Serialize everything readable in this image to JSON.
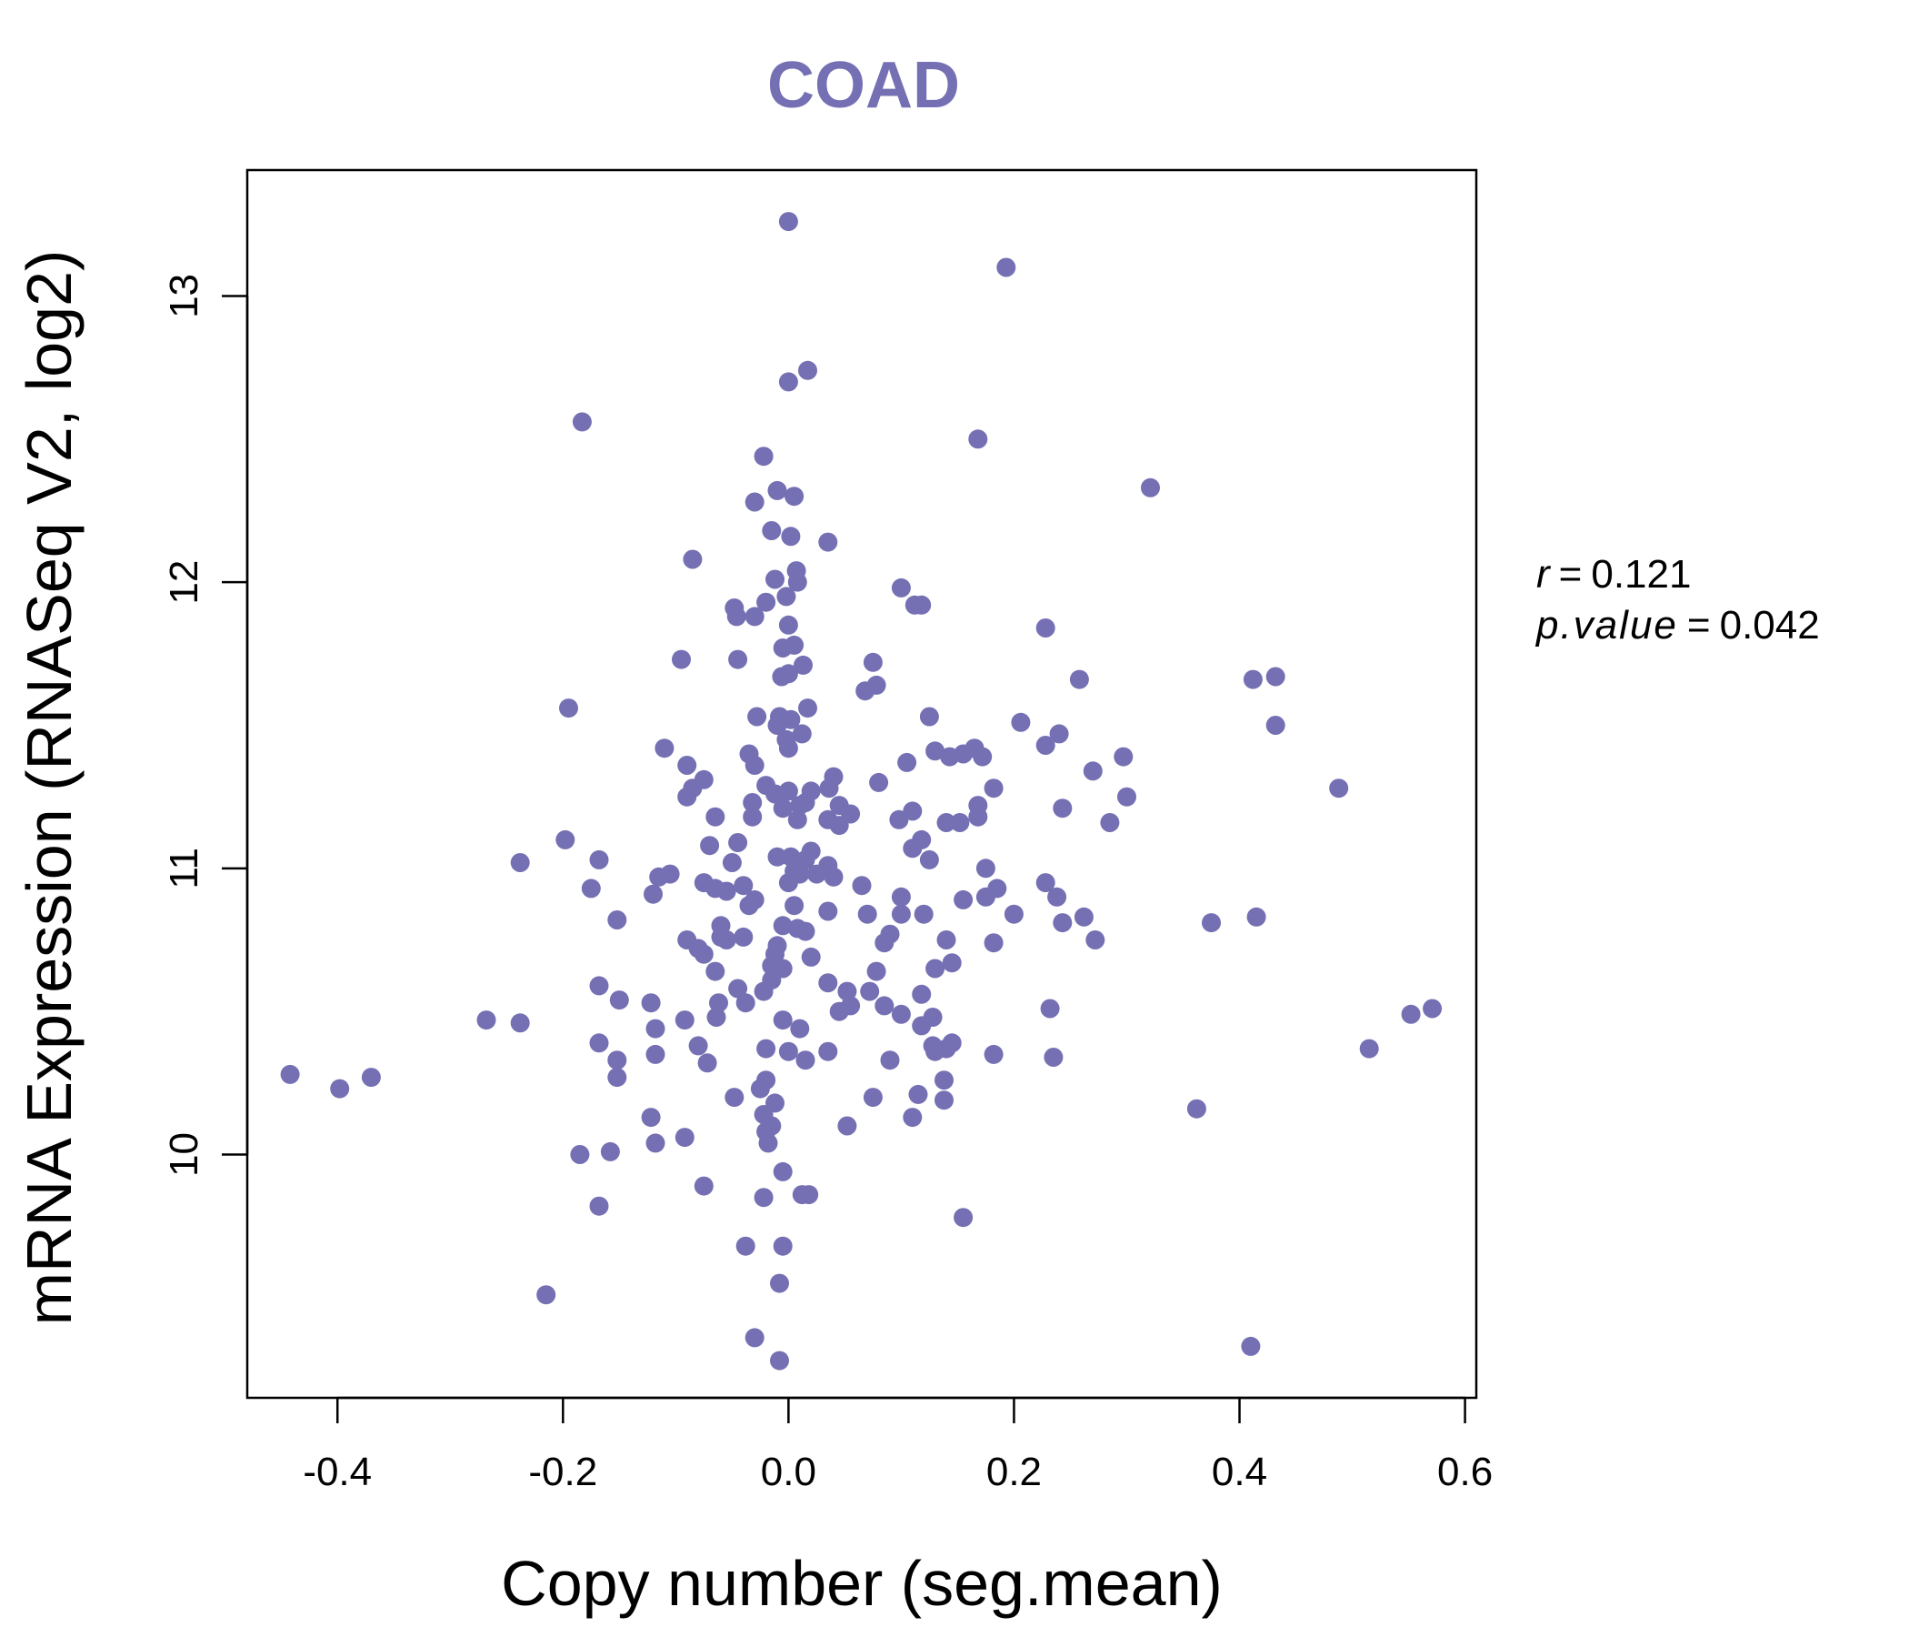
{
  "colors": {
    "points": "#7570b3",
    "title": "#7570b3",
    "axis": "#000000"
  },
  "chart_data": {
    "type": "scatter",
    "title": "COAD",
    "xlabel": "Copy number (seg.mean)",
    "ylabel": "mRNA Expression (RNASeq V2, log2)",
    "xlim": [
      -0.48,
      0.61
    ],
    "ylim": [
      9.15,
      13.44
    ],
    "xticks": [
      -0.4,
      -0.2,
      0.0,
      0.2,
      0.4,
      0.6
    ],
    "xtick_labels": [
      "-0.4",
      "-0.2",
      "0.0",
      "0.2",
      "0.4",
      "0.6"
    ],
    "yticks": [
      10,
      11,
      12,
      13
    ],
    "ytick_labels": [
      "10",
      "11",
      "12",
      "13"
    ],
    "stats": {
      "r_label": "r",
      "r_value": "0.121",
      "p_label": "p.value",
      "p_value": "0.042"
    },
    "points": [
      [
        0.0,
        13.26
      ],
      [
        0.193,
        13.1
      ],
      [
        0.017,
        12.74
      ],
      [
        0.0,
        12.7
      ],
      [
        -0.183,
        12.56
      ],
      [
        0.168,
        12.5
      ],
      [
        -0.022,
        12.44
      ],
      [
        0.321,
        12.33
      ],
      [
        -0.01,
        12.32
      ],
      [
        0.005,
        12.3
      ],
      [
        -0.03,
        12.28
      ],
      [
        -0.015,
        12.18
      ],
      [
        0.002,
        12.16
      ],
      [
        0.035,
        12.14
      ],
      [
        -0.085,
        12.08
      ],
      [
        0.007,
        12.04
      ],
      [
        -0.012,
        12.01
      ],
      [
        0.008,
        12.0
      ],
      [
        0.1,
        11.98
      ],
      [
        0.118,
        11.92
      ],
      [
        -0.02,
        11.93
      ],
      [
        -0.048,
        11.91
      ],
      [
        0.112,
        11.92
      ],
      [
        -0.03,
        11.88
      ],
      [
        -0.046,
        11.88
      ],
      [
        -0.002,
        11.95
      ],
      [
        0.0,
        11.85
      ],
      [
        0.228,
        11.84
      ],
      [
        -0.005,
        11.77
      ],
      [
        0.005,
        11.78
      ],
      [
        -0.095,
        11.73
      ],
      [
        -0.045,
        11.73
      ],
      [
        0.075,
        11.72
      ],
      [
        0.013,
        11.71
      ],
      [
        -0.006,
        11.67
      ],
      [
        0.0,
        11.68
      ],
      [
        0.258,
        11.66
      ],
      [
        0.412,
        11.66
      ],
      [
        0.432,
        11.67
      ],
      [
        0.078,
        11.64
      ],
      [
        0.068,
        11.62
      ],
      [
        -0.195,
        11.56
      ],
      [
        0.017,
        11.56
      ],
      [
        -0.028,
        11.53
      ],
      [
        -0.008,
        11.53
      ],
      [
        0.002,
        11.52
      ],
      [
        -0.01,
        11.5
      ],
      [
        0.125,
        11.53
      ],
      [
        0.206,
        11.51
      ],
      [
        0.432,
        11.5
      ],
      [
        0.012,
        11.47
      ],
      [
        0.24,
        11.47
      ],
      [
        -0.002,
        11.45
      ],
      [
        0.0,
        11.42
      ],
      [
        0.228,
        11.43
      ],
      [
        -0.11,
        11.42
      ],
      [
        0.13,
        11.41
      ],
      [
        0.165,
        11.42
      ],
      [
        -0.035,
        11.4
      ],
      [
        0.143,
        11.39
      ],
      [
        0.155,
        11.4
      ],
      [
        0.172,
        11.39
      ],
      [
        0.297,
        11.39
      ],
      [
        -0.09,
        11.36
      ],
      [
        -0.03,
        11.36
      ],
      [
        0.105,
        11.37
      ],
      [
        0.27,
        11.34
      ],
      [
        0.04,
        11.32
      ],
      [
        -0.075,
        11.31
      ],
      [
        -0.085,
        11.28
      ],
      [
        -0.02,
        11.29
      ],
      [
        0.0,
        11.27
      ],
      [
        0.02,
        11.27
      ],
      [
        0.036,
        11.28
      ],
      [
        0.08,
        11.3
      ],
      [
        0.182,
        11.28
      ],
      [
        0.488,
        11.28
      ],
      [
        -0.012,
        11.26
      ],
      [
        -0.032,
        11.23
      ],
      [
        0.015,
        11.23
      ],
      [
        0.3,
        11.25
      ],
      [
        -0.09,
        11.25
      ],
      [
        0.01,
        11.22
      ],
      [
        0.045,
        11.22
      ],
      [
        -0.005,
        11.21
      ],
      [
        0.168,
        11.22
      ],
      [
        0.243,
        11.21
      ],
      [
        0.11,
        11.2
      ],
      [
        -0.065,
        11.18
      ],
      [
        0.055,
        11.19
      ],
      [
        0.035,
        11.17
      ],
      [
        0.008,
        11.17
      ],
      [
        -0.032,
        11.18
      ],
      [
        0.098,
        11.17
      ],
      [
        0.14,
        11.16
      ],
      [
        0.152,
        11.16
      ],
      [
        0.045,
        11.15
      ],
      [
        0.168,
        11.18
      ],
      [
        0.285,
        11.16
      ],
      [
        -0.198,
        11.1
      ],
      [
        -0.07,
        11.08
      ],
      [
        -0.045,
        11.09
      ],
      [
        0.118,
        11.1
      ],
      [
        0.11,
        11.07
      ],
      [
        0.02,
        11.06
      ],
      [
        -0.168,
        11.03
      ],
      [
        -0.238,
        11.02
      ],
      [
        -0.01,
        11.04
      ],
      [
        0.002,
        11.04
      ],
      [
        0.015,
        11.03
      ],
      [
        0.035,
        11.01
      ],
      [
        0.125,
        11.03
      ],
      [
        0.175,
        11.0
      ],
      [
        -0.05,
        11.02
      ],
      [
        0.005,
        10.99
      ],
      [
        0.01,
        10.98
      ],
      [
        0.025,
        10.98
      ],
      [
        0.04,
        10.97
      ],
      [
        -0.115,
        10.97
      ],
      [
        -0.105,
        10.98
      ],
      [
        -0.075,
        10.95
      ],
      [
        -0.04,
        10.94
      ],
      [
        0.065,
        10.94
      ],
      [
        0.228,
        10.95
      ],
      [
        0.185,
        10.93
      ],
      [
        -0.175,
        10.93
      ],
      [
        -0.12,
        10.91
      ],
      [
        -0.065,
        10.93
      ],
      [
        -0.055,
        10.92
      ],
      [
        0.0,
        10.95
      ],
      [
        0.1,
        10.9
      ],
      [
        0.155,
        10.89
      ],
      [
        0.175,
        10.9
      ],
      [
        0.238,
        10.9
      ],
      [
        -0.03,
        10.89
      ],
      [
        -0.035,
        10.87
      ],
      [
        0.005,
        10.87
      ],
      [
        0.035,
        10.85
      ],
      [
        0.07,
        10.84
      ],
      [
        0.1,
        10.84
      ],
      [
        0.12,
        10.84
      ],
      [
        0.2,
        10.84
      ],
      [
        0.262,
        10.83
      ],
      [
        0.415,
        10.83
      ],
      [
        -0.152,
        10.82
      ],
      [
        0.375,
        10.81
      ],
      [
        0.243,
        10.81
      ],
      [
        -0.005,
        10.8
      ],
      [
        0.008,
        10.79
      ],
      [
        -0.06,
        10.8
      ],
      [
        -0.06,
        10.76
      ],
      [
        0.015,
        10.78
      ],
      [
        0.09,
        10.77
      ],
      [
        -0.09,
        10.75
      ],
      [
        -0.055,
        10.75
      ],
      [
        -0.04,
        10.76
      ],
      [
        0.14,
        10.75
      ],
      [
        0.182,
        10.74
      ],
      [
        0.272,
        10.75
      ],
      [
        -0.08,
        10.72
      ],
      [
        -0.01,
        10.73
      ],
      [
        0.085,
        10.74
      ],
      [
        -0.075,
        10.7
      ],
      [
        -0.012,
        10.7
      ],
      [
        0.02,
        10.69
      ],
      [
        -0.015,
        10.66
      ],
      [
        -0.065,
        10.64
      ],
      [
        -0.005,
        10.65
      ],
      [
        0.078,
        10.64
      ],
      [
        0.13,
        10.65
      ],
      [
        0.145,
        10.67
      ],
      [
        -0.015,
        10.61
      ],
      [
        -0.168,
        10.59
      ],
      [
        -0.045,
        10.58
      ],
      [
        0.035,
        10.6
      ],
      [
        0.072,
        10.57
      ],
      [
        0.052,
        10.57
      ],
      [
        0.118,
        10.56
      ],
      [
        -0.022,
        10.57
      ],
      [
        -0.15,
        10.54
      ],
      [
        -0.122,
        10.53
      ],
      [
        -0.038,
        10.53
      ],
      [
        -0.062,
        10.53
      ],
      [
        0.055,
        10.52
      ],
      [
        0.085,
        10.52
      ],
      [
        0.045,
        10.5
      ],
      [
        0.232,
        10.51
      ],
      [
        0.552,
        10.49
      ],
      [
        0.571,
        10.51
      ],
      [
        -0.268,
        10.47
      ],
      [
        -0.238,
        10.46
      ],
      [
        -0.092,
        10.47
      ],
      [
        -0.064,
        10.48
      ],
      [
        -0.005,
        10.47
      ],
      [
        0.1,
        10.49
      ],
      [
        0.128,
        10.48
      ],
      [
        -0.118,
        10.44
      ],
      [
        0.01,
        10.44
      ],
      [
        0.118,
        10.45
      ],
      [
        -0.168,
        10.39
      ],
      [
        -0.08,
        10.38
      ],
      [
        -0.02,
        10.37
      ],
      [
        0.0,
        10.36
      ],
      [
        0.015,
        10.33
      ],
      [
        0.035,
        10.36
      ],
      [
        0.13,
        10.36
      ],
      [
        0.14,
        10.37
      ],
      [
        0.128,
        10.38
      ],
      [
        0.145,
        10.39
      ],
      [
        0.182,
        10.35
      ],
      [
        0.235,
        10.34
      ],
      [
        0.515,
        10.37
      ],
      [
        -0.118,
        10.35
      ],
      [
        -0.152,
        10.33
      ],
      [
        -0.072,
        10.32
      ],
      [
        0.09,
        10.33
      ],
      [
        -0.442,
        10.28
      ],
      [
        -0.37,
        10.27
      ],
      [
        -0.398,
        10.23
      ],
      [
        -0.152,
        10.27
      ],
      [
        -0.02,
        10.26
      ],
      [
        0.138,
        10.26
      ],
      [
        -0.025,
        10.23
      ],
      [
        -0.048,
        10.2
      ],
      [
        0.075,
        10.2
      ],
      [
        0.115,
        10.21
      ],
      [
        0.138,
        10.19
      ],
      [
        -0.012,
        10.18
      ],
      [
        0.362,
        10.16
      ],
      [
        -0.022,
        10.14
      ],
      [
        -0.122,
        10.13
      ],
      [
        0.11,
        10.13
      ],
      [
        -0.015,
        10.1
      ],
      [
        -0.02,
        10.08
      ],
      [
        0.052,
        10.1
      ],
      [
        -0.092,
        10.06
      ],
      [
        -0.118,
        10.04
      ],
      [
        -0.018,
        10.04
      ],
      [
        -0.185,
        10.0
      ],
      [
        -0.158,
        10.01
      ],
      [
        -0.005,
        9.94
      ],
      [
        -0.075,
        9.89
      ],
      [
        -0.022,
        9.85
      ],
      [
        0.012,
        9.86
      ],
      [
        0.018,
        9.86
      ],
      [
        -0.168,
        9.82
      ],
      [
        0.155,
        9.78
      ],
      [
        -0.038,
        9.68
      ],
      [
        -0.005,
        9.68
      ],
      [
        -0.008,
        9.55
      ],
      [
        -0.215,
        9.51
      ],
      [
        -0.03,
        9.36
      ],
      [
        0.41,
        9.33
      ],
      [
        -0.008,
        9.28
      ]
    ]
  }
}
